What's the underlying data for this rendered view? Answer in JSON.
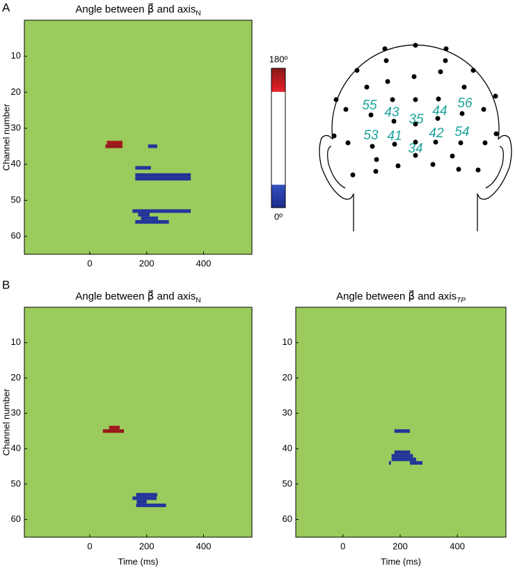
{
  "panel_labels": [
    "A",
    "B"
  ],
  "chart_data": [
    {
      "type": "heatmap",
      "title": "Angle between β⃗ and axis",
      "title_subscript": "N",
      "ylabel": "Channel number",
      "xlim": [
        -230,
        570
      ],
      "ylim": [
        0,
        65
      ],
      "y_inverted": true,
      "xticks": [
        0,
        200,
        400
      ],
      "yticks": [
        10,
        20,
        30,
        40,
        50,
        60
      ],
      "na_color": "#9bcb5c",
      "colorbar": {
        "clim": [
          0,
          180
        ],
        "ticks": [
          {
            "value": 180,
            "label": "180º"
          },
          {
            "value": 0,
            "label": "0º"
          }
        ]
      },
      "patches": [
        {
          "channel": 34,
          "x": [
            60,
            115
          ],
          "value": 172
        },
        {
          "channel": 35,
          "x": [
            55,
            115
          ],
          "value": 176
        },
        {
          "channel": 35,
          "x": [
            205,
            237
          ],
          "value": 8
        },
        {
          "channel": 41,
          "x": [
            160,
            215
          ],
          "value": 10
        },
        {
          "channel": 43,
          "x": [
            160,
            355
          ],
          "value": 6
        },
        {
          "channel": 44,
          "x": [
            160,
            355
          ],
          "value": 8
        },
        {
          "channel": 53,
          "x": [
            150,
            355
          ],
          "value": 8
        },
        {
          "channel": 54,
          "x": [
            170,
            210
          ],
          "value": 6
        },
        {
          "channel": 55,
          "x": [
            180,
            240
          ],
          "value": 10
        },
        {
          "channel": 56,
          "x": [
            160,
            278
          ],
          "value": 8
        }
      ]
    },
    {
      "type": "heatmap",
      "title": "Angle between β⃗ and axis",
      "title_subscript": "N",
      "xlabel": "Time (ms)",
      "ylabel": "Channel number",
      "xlim": [
        -230,
        570
      ],
      "ylim": [
        0,
        65
      ],
      "y_inverted": true,
      "xticks": [
        0,
        200,
        400
      ],
      "yticks": [
        10,
        20,
        30,
        40,
        50,
        60
      ],
      "na_color": "#9bcb5c",
      "patches": [
        {
          "channel": 34,
          "x": [
            68,
            105
          ],
          "value": 172
        },
        {
          "channel": 35,
          "x": [
            46,
            120
          ],
          "value": 176
        },
        {
          "channel": 53,
          "x": [
            163,
            237
          ],
          "value": 8
        },
        {
          "channel": 54,
          "x": [
            150,
            235
          ],
          "value": 10
        },
        {
          "channel": 55,
          "x": [
            165,
            200
          ],
          "value": 6
        },
        {
          "channel": 56,
          "x": [
            163,
            268
          ],
          "value": 8
        }
      ]
    },
    {
      "type": "heatmap",
      "title": "Angle between β⃗ and axis",
      "title_subscript": "TP",
      "xlabel": "Time (ms)",
      "xlim": [
        -165,
        570
      ],
      "ylim": [
        0,
        65
      ],
      "y_inverted": true,
      "xticks": [
        0,
        200,
        400
      ],
      "yticks": [
        10,
        20,
        30,
        40,
        50,
        60
      ],
      "na_color": "#9bcb5c",
      "patches": [
        {
          "channel": 35,
          "x": [
            180,
            234
          ],
          "value": 8
        },
        {
          "channel": 41,
          "x": [
            180,
            235
          ],
          "value": 6
        },
        {
          "channel": 42,
          "x": [
            170,
            245
          ],
          "value": 8
        },
        {
          "channel": 43,
          "x": [
            170,
            256
          ],
          "value": 10
        },
        {
          "channel": 44,
          "x": [
            161,
            168
          ],
          "value": 8
        },
        {
          "channel": 44,
          "x": [
            234,
            278
          ],
          "value": 8
        }
      ]
    }
  ],
  "head": {
    "electrode_labels": [
      "55",
      "43",
      "35",
      "44",
      "56",
      "53",
      "41",
      "42",
      "54",
      "34"
    ]
  }
}
